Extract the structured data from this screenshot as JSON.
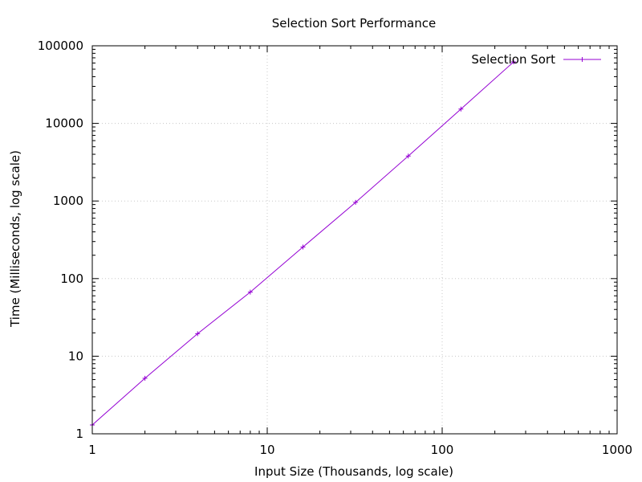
{
  "chart_data": {
    "type": "line",
    "title": "Selection Sort Performance",
    "xlabel": "Input Size (Thousands, log scale)",
    "ylabel": "Time (Milliseconds, log scale)",
    "xscale": "log",
    "yscale": "log",
    "xlim": [
      1,
      1000
    ],
    "ylim": [
      1,
      100000
    ],
    "grid": true,
    "legend_position": "top-right",
    "x_ticks": [
      1,
      10,
      100,
      1000
    ],
    "x_tick_labels": [
      "1",
      "10",
      "100",
      "1000"
    ],
    "y_ticks": [
      1,
      10,
      100,
      1000,
      10000,
      100000
    ],
    "y_tick_labels": [
      "1",
      "10",
      "100",
      "1000",
      "10000",
      "100000"
    ],
    "series": [
      {
        "name": "Selection Sort",
        "color": "#9400d3",
        "marker": "plus",
        "x": [
          1,
          2,
          4,
          8,
          16,
          32,
          64,
          128,
          256
        ],
        "y": [
          1.3,
          5.2,
          19.5,
          67,
          255,
          960,
          3800,
          15300,
          62000
        ]
      }
    ]
  }
}
